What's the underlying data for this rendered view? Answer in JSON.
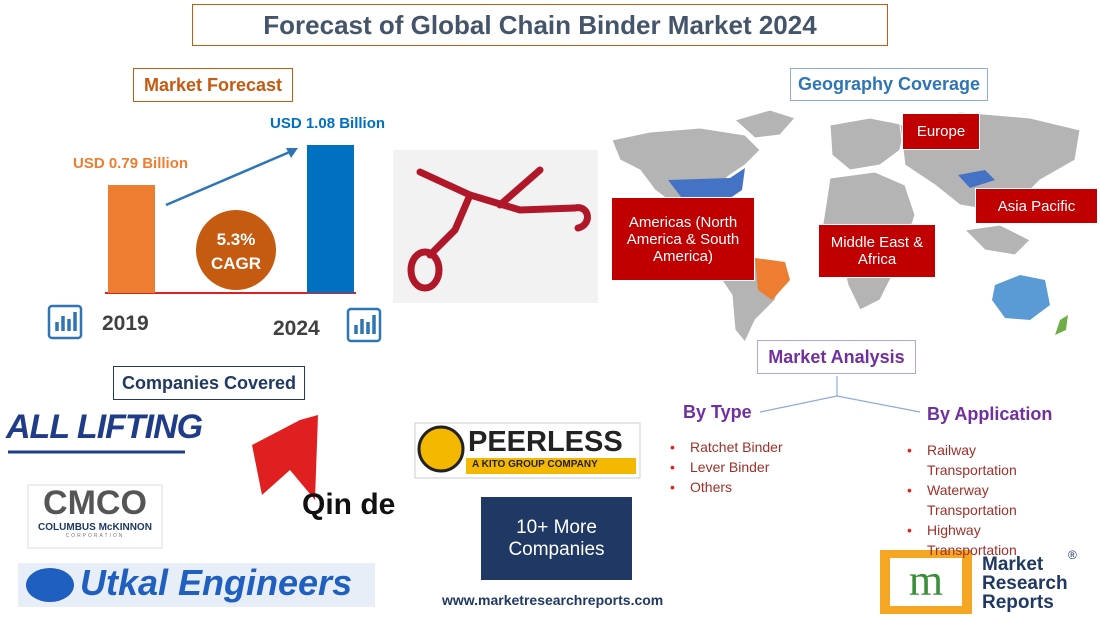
{
  "title": "Forecast of Global Chain Binder Market 2024",
  "market_forecast": {
    "heading": "Market Forecast",
    "bars": [
      {
        "year": "2019",
        "value": 0.79,
        "label": "USD 0.79 Billion",
        "color": "#ed7d31"
      },
      {
        "year": "2024",
        "value": 1.08,
        "label": "USD 1.08 Billion",
        "color": "#0070c0"
      }
    ],
    "cagr": "5.3%",
    "cagr_label": "CAGR"
  },
  "geography": {
    "heading": "Geography Coverage",
    "regions": [
      "Europe",
      "Americas (North America & South America)",
      "Middle East & Africa",
      "Asia Pacific"
    ]
  },
  "companies": {
    "heading": "Companies Covered",
    "logos": [
      "ALL LIFTING",
      "COLUMBUS McKINNON",
      "CORPORATION",
      "Qin de",
      "PEERLESS",
      "A KITO GROUP COMPANY",
      "Utkal Engineers"
    ],
    "more": "10+ More Companies"
  },
  "analysis": {
    "heading": "Market Analysis",
    "by_type": {
      "heading": "By Type",
      "items": [
        "Ratchet Binder",
        "Lever Binder",
        "Others"
      ]
    },
    "by_application": {
      "heading": "By Application",
      "items": [
        "Railway Transportation",
        "Waterway Transportation",
        "Highway Transportation"
      ]
    }
  },
  "website": "www.marketresearchreports.com",
  "brand": {
    "lines": [
      "Market",
      "Research",
      "Reports"
    ],
    "mark": "®"
  }
}
